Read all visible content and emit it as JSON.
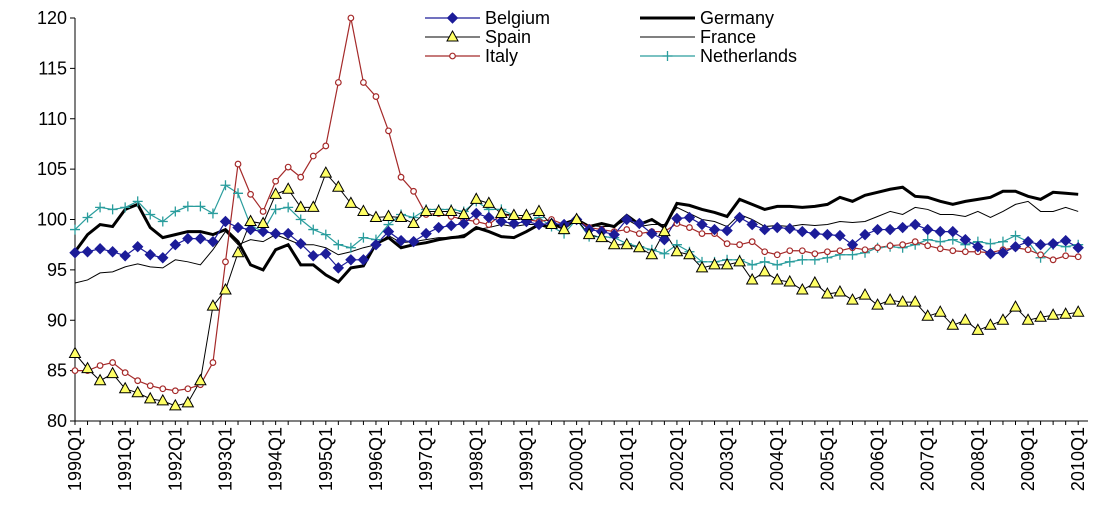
{
  "chart_data": {
    "type": "line",
    "categories": [
      "1990Q1",
      null,
      null,
      null,
      "1991Q1",
      null,
      null,
      null,
      "1992Q1",
      null,
      null,
      null,
      "1993Q1",
      null,
      null,
      null,
      "1994Q1",
      null,
      null,
      null,
      "1995Q1",
      null,
      null,
      null,
      "1996Q1",
      null,
      null,
      null,
      "1997Q1",
      null,
      null,
      null,
      "1998Q1",
      null,
      null,
      null,
      "1999Q1",
      null,
      null,
      null,
      "2000Q1",
      null,
      null,
      null,
      "2001Q1",
      null,
      null,
      null,
      "2002Q1",
      null,
      null,
      null,
      "2003Q1",
      null,
      null,
      null,
      "2004Q1",
      null,
      null,
      null,
      "2005Q1",
      null,
      null,
      null,
      "2006Q1",
      null,
      null,
      null,
      "2007Q1",
      null,
      null,
      null,
      "2008Q1",
      null,
      null,
      null,
      "2009Q1",
      null,
      null,
      null,
      "2010Q1"
    ],
    "ylim": [
      80,
      120
    ],
    "yticks": [
      80,
      85,
      90,
      95,
      100,
      105,
      110,
      115,
      120
    ],
    "grid": false,
    "legend": "top",
    "series": [
      {
        "name": "Belgium",
        "color": "#1c1c99",
        "marker": "diamond",
        "line_width": 1.2,
        "values": [
          96.7,
          96.8,
          97.1,
          96.8,
          96.4,
          97.3,
          96.5,
          96.2,
          97.5,
          98.1,
          98.1,
          97.8,
          99.8,
          99.2,
          99,
          98.8,
          98.6,
          98.6,
          97.6,
          96.4,
          96.6,
          95.2,
          96,
          96,
          97.5,
          98.8,
          97.9,
          97.8,
          98.6,
          99.2,
          99.4,
          99.6,
          100.6,
          100.2,
          99.8,
          99.6,
          99.8,
          99.5,
          99.6,
          99.5,
          100,
          99,
          98.8,
          98.5,
          100,
          99.6,
          98.6,
          98,
          100.1,
          100.2,
          99.5,
          99,
          98.9,
          100.2,
          99.5,
          99,
          99.2,
          99.1,
          98.8,
          98.6,
          98.5,
          98.4,
          97.5,
          98.5,
          99,
          99,
          99.2,
          99.5,
          99,
          98.8,
          98.8,
          98,
          97.3,
          96.6,
          96.7,
          97.3,
          97.8,
          97.5,
          97.6,
          97.9,
          97.2
        ]
      },
      {
        "name": "Spain",
        "color": "#000000",
        "marker": "triangle",
        "marker_fill": "#ffff66",
        "line_width": 1,
        "values": [
          86.7,
          85.2,
          84,
          84.7,
          83.2,
          82.8,
          82.2,
          82,
          81.5,
          81.8,
          84,
          91.4,
          93,
          96.7,
          99.8,
          99.6,
          102.5,
          103,
          101.2,
          101.2,
          104.6,
          103.2,
          101.6,
          100.8,
          100.2,
          100.3,
          100.2,
          99.6,
          100.8,
          100.8,
          100.8,
          100.5,
          102,
          101.6,
          100.6,
          100.4,
          100.4,
          100.8,
          99.5,
          99,
          100,
          98.5,
          98.2,
          97.5,
          97.5,
          97.2,
          96.5,
          98.8,
          96.8,
          96.5,
          95.2,
          95.5,
          95.5,
          95.8,
          94,
          94.8,
          94,
          93.8,
          93,
          93.7,
          92.6,
          92.8,
          92,
          92.5,
          91.5,
          92,
          91.8,
          91.8,
          90.4,
          90.8,
          89.5,
          90,
          89,
          89.5,
          90,
          91.3,
          90,
          90.3,
          90.5,
          90.6,
          90.8
        ]
      },
      {
        "name": "Italy",
        "color": "#a52a2a",
        "marker": "circle",
        "line_width": 1.2,
        "values": [
          85,
          85,
          85.5,
          85.8,
          84.8,
          84,
          83.5,
          83.2,
          83,
          83.2,
          83.6,
          85.8,
          95.8,
          105.5,
          102.5,
          100.8,
          103.8,
          105.2,
          104.2,
          106.3,
          107.3,
          113.6,
          120,
          113.6,
          112.2,
          108.8,
          104.2,
          102.8,
          100.5,
          100.6,
          100.3,
          100,
          99.8,
          99.5,
          100.5,
          100.3,
          100,
          99.8,
          100,
          99.5,
          100,
          99.2,
          99,
          98.8,
          99,
          98.6,
          98.8,
          98.8,
          99.6,
          99.2,
          98.6,
          98.6,
          97.6,
          97.5,
          97.8,
          96.8,
          96.5,
          96.9,
          96.9,
          96.6,
          96.8,
          96.9,
          97.2,
          97,
          97.2,
          97.4,
          97.5,
          97.8,
          97.4,
          97.1,
          96.9,
          96.8,
          96.8,
          96.7,
          97,
          97.2,
          97,
          96.5,
          96,
          96.4,
          96.3
        ]
      },
      {
        "name": "Germany",
        "color": "#000000",
        "marker": "none",
        "line_width": 3,
        "values": [
          96.8,
          98.5,
          99.5,
          99.3,
          101,
          101.5,
          99.2,
          98.2,
          98.5,
          98.8,
          98.8,
          98.5,
          99,
          97.8,
          95.5,
          95,
          97,
          97.5,
          95.5,
          95.5,
          94.5,
          93.8,
          95.2,
          95.4,
          97.6,
          98.2,
          97.2,
          97.5,
          97.7,
          98,
          98.2,
          98.3,
          99.2,
          98.8,
          98.3,
          98.2,
          98.8,
          99.5,
          99.2,
          99.6,
          100,
          99.3,
          99.6,
          99.3,
          100.4,
          99.5,
          100,
          99.2,
          101.6,
          101.4,
          101,
          100.7,
          100.3,
          102,
          101.5,
          101,
          101.3,
          101.3,
          101.2,
          101.3,
          101.5,
          102.2,
          101.8,
          102.4,
          102.7,
          103,
          103.2,
          102.3,
          102.2,
          101.8,
          101.5,
          101.8,
          102,
          102.2,
          102.8,
          102.8,
          102.3,
          102,
          102.7,
          102.6,
          102.5
        ]
      },
      {
        "name": "France",
        "color": "#000000",
        "marker": "none",
        "line_width": 1,
        "values": [
          93.7,
          94,
          94.7,
          94.8,
          95.3,
          95.6,
          95.3,
          95.2,
          96,
          95.8,
          95.5,
          97,
          98.8,
          97.5,
          98,
          97.8,
          98.5,
          98,
          97.5,
          97.5,
          97.2,
          96.5,
          96.8,
          97.2,
          97.5,
          98.4,
          97.7,
          97.8,
          98,
          98.2,
          98.2,
          98.5,
          99,
          99.2,
          99.5,
          99.3,
          99.5,
          99.5,
          99.3,
          99.2,
          100,
          99.4,
          99.3,
          99.3,
          100,
          99.3,
          99.5,
          99.5,
          101.2,
          100.6,
          100,
          99.8,
          99.3,
          100.5,
          100,
          99.3,
          99.4,
          99.3,
          99.5,
          99.4,
          99.5,
          99.8,
          99.7,
          99.8,
          100.3,
          100.8,
          100.5,
          101.2,
          101,
          100.5,
          100.5,
          100.3,
          100.8,
          100.2,
          100.8,
          101.5,
          101.8,
          100.8,
          100.8,
          101.2,
          100.8
        ]
      },
      {
        "name": "Netherlands",
        "color": "#2a9d9d",
        "marker": "plus",
        "line_width": 1.2,
        "values": [
          99,
          100.2,
          101.2,
          101,
          101.2,
          101.8,
          100.5,
          99.8,
          100.8,
          101.3,
          101.3,
          100.6,
          103.4,
          102.6,
          99.4,
          98.8,
          101,
          101.2,
          100,
          99,
          98.5,
          97.5,
          97.2,
          98.2,
          98,
          99.5,
          100.5,
          100.2,
          101,
          101,
          101,
          100.8,
          101.8,
          101,
          101,
          100.4,
          99.8,
          100.2,
          99.3,
          98.6,
          100,
          98.3,
          98.3,
          98.2,
          97.6,
          97.3,
          97,
          96.6,
          97.5,
          96.8,
          95.8,
          95.8,
          96,
          96,
          95.5,
          95.8,
          95.5,
          95.8,
          96,
          96,
          96.2,
          96.5,
          96.5,
          96.7,
          97.2,
          97.3,
          97.2,
          97.5,
          98,
          97.8,
          98,
          97.5,
          97.8,
          97.6,
          97.8,
          98.4,
          97.8,
          96.2,
          97.5,
          97.3,
          97.5
        ]
      }
    ]
  }
}
